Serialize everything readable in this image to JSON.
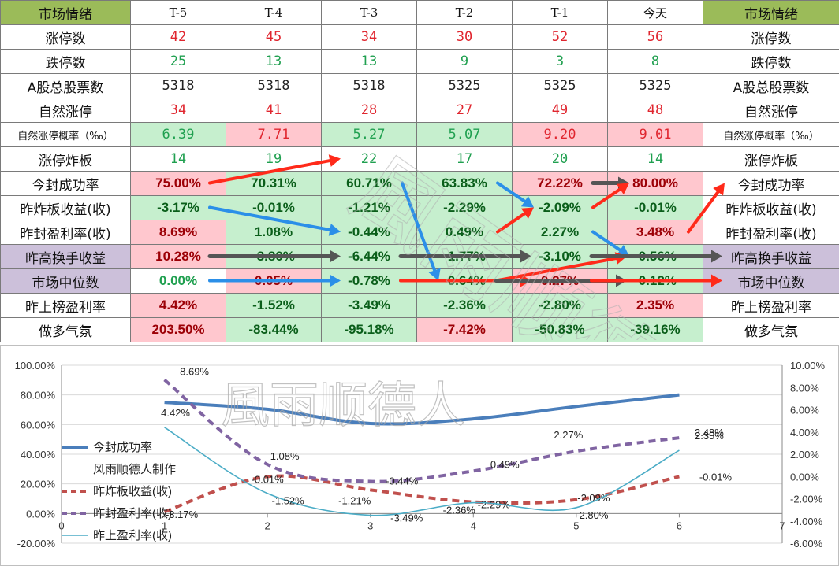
{
  "header": {
    "left_title": "市场情绪",
    "right_title": "市场情绪",
    "cols": [
      "T-5",
      "T-4",
      "T-3",
      "T-2",
      "T-1",
      "今天"
    ]
  },
  "rows": [
    {
      "label": "涨停数",
      "kind": "val",
      "cells": [
        {
          "v": "42",
          "c": "red"
        },
        {
          "v": "45",
          "c": "red"
        },
        {
          "v": "34",
          "c": "red"
        },
        {
          "v": "30",
          "c": "red"
        },
        {
          "v": "52",
          "c": "red"
        },
        {
          "v": "56",
          "c": "red"
        }
      ]
    },
    {
      "label": "跌停数",
      "kind": "val",
      "cells": [
        {
          "v": "25",
          "c": "green"
        },
        {
          "v": "13",
          "c": "green"
        },
        {
          "v": "13",
          "c": "green"
        },
        {
          "v": "9",
          "c": "green"
        },
        {
          "v": "3",
          "c": "green"
        },
        {
          "v": "8",
          "c": "green"
        }
      ]
    },
    {
      "label": "A股总股票数",
      "kind": "val",
      "cells": [
        {
          "v": "5318",
          "c": "black"
        },
        {
          "v": "5318",
          "c": "black"
        },
        {
          "v": "5318",
          "c": "black"
        },
        {
          "v": "5325",
          "c": "black"
        },
        {
          "v": "5325",
          "c": "black"
        },
        {
          "v": "5325",
          "c": "black"
        }
      ]
    },
    {
      "label": "自然涨停",
      "kind": "val",
      "cells": [
        {
          "v": "34",
          "c": "red"
        },
        {
          "v": "41",
          "c": "red"
        },
        {
          "v": "28",
          "c": "red"
        },
        {
          "v": "27",
          "c": "red"
        },
        {
          "v": "49",
          "c": "red"
        },
        {
          "v": "48",
          "c": "red"
        }
      ]
    },
    {
      "label": "自然涨停概率（‰）",
      "kind": "val",
      "small": true,
      "cells": [
        {
          "v": "6.39",
          "c": "green",
          "bg": "green"
        },
        {
          "v": "7.71",
          "c": "red",
          "bg": "pink"
        },
        {
          "v": "5.27",
          "c": "green",
          "bg": "green"
        },
        {
          "v": "5.07",
          "c": "green",
          "bg": "green"
        },
        {
          "v": "9.20",
          "c": "red",
          "bg": "pink"
        },
        {
          "v": "9.01",
          "c": "red",
          "bg": "pink"
        }
      ]
    },
    {
      "label": "涨停炸板",
      "kind": "val",
      "cells": [
        {
          "v": "14",
          "c": "green"
        },
        {
          "v": "19",
          "c": "green"
        },
        {
          "v": "22",
          "c": "green"
        },
        {
          "v": "17",
          "c": "green"
        },
        {
          "v": "20",
          "c": "green"
        },
        {
          "v": "14",
          "c": "green"
        }
      ]
    },
    {
      "label": "今封成功率",
      "kind": "pct",
      "cells": [
        {
          "v": "75.00%",
          "c": "dred",
          "bg": "pink"
        },
        {
          "v": "70.31%",
          "c": "dgreen",
          "bg": "green"
        },
        {
          "v": "60.71%",
          "c": "dgreen",
          "bg": "green"
        },
        {
          "v": "63.83%",
          "c": "dgreen",
          "bg": "green"
        },
        {
          "v": "72.22%",
          "c": "dred",
          "bg": "pink"
        },
        {
          "v": "80.00%",
          "c": "dred",
          "bg": "pink"
        }
      ]
    },
    {
      "label": "昨炸板收益(收)",
      "kind": "pct",
      "cells": [
        {
          "v": "-3.17%",
          "c": "dgreen",
          "bg": "green"
        },
        {
          "v": "-0.01%",
          "c": "dgreen",
          "bg": "green"
        },
        {
          "v": "-1.21%",
          "c": "dgreen",
          "bg": "green"
        },
        {
          "v": "-2.29%",
          "c": "dgreen",
          "bg": "green"
        },
        {
          "v": "-2.09%",
          "c": "dgreen",
          "bg": "green"
        },
        {
          "v": "-0.01%",
          "c": "dgreen",
          "bg": "green"
        }
      ]
    },
    {
      "label": "昨封盈利率(收)",
      "kind": "pct",
      "cells": [
        {
          "v": "8.69%",
          "c": "dred",
          "bg": "pink"
        },
        {
          "v": "1.08%",
          "c": "dgreen",
          "bg": "green"
        },
        {
          "v": "-0.44%",
          "c": "dgreen",
          "bg": "green"
        },
        {
          "v": "0.49%",
          "c": "dgreen",
          "bg": "green"
        },
        {
          "v": "2.27%",
          "c": "dgreen",
          "bg": "green"
        },
        {
          "v": "3.48%",
          "c": "dred",
          "bg": "pink"
        }
      ]
    },
    {
      "label": "昨高换手收益",
      "kind": "pct",
      "label_bg": "purple",
      "cells": [
        {
          "v": "10.28%",
          "c": "dred",
          "bg": "pink"
        },
        {
          "v": "-3.80%",
          "c": "dgreen",
          "bg": "green"
        },
        {
          "v": "-6.44%",
          "c": "dgreen",
          "bg": "green"
        },
        {
          "v": "-1.77%",
          "c": "dgreen",
          "bg": "green"
        },
        {
          "v": "-3.10%",
          "c": "dgreen",
          "bg": "green"
        },
        {
          "v": "-0.56%",
          "c": "dgreen",
          "bg": "green"
        }
      ]
    },
    {
      "label": "市场中位数",
      "kind": "pct",
      "label_bg": "purple",
      "cells": [
        {
          "v": "0.00%",
          "c": "green",
          "bg": "white"
        },
        {
          "v": "0.05%",
          "c": "dred",
          "bg": "pink"
        },
        {
          "v": "-0.78%",
          "c": "dgreen",
          "bg": "green"
        },
        {
          "v": "-0.64%",
          "c": "dgreen",
          "bg": "green"
        },
        {
          "v": "0.27%",
          "c": "dred",
          "bg": "pink"
        },
        {
          "v": "-0.12%",
          "c": "dgreen",
          "bg": "green"
        }
      ]
    },
    {
      "label": "昨上榜盈利率",
      "kind": "pct",
      "cells": [
        {
          "v": "4.42%",
          "c": "dred",
          "bg": "pink"
        },
        {
          "v": "-1.52%",
          "c": "dgreen",
          "bg": "green"
        },
        {
          "v": "-3.49%",
          "c": "dgreen",
          "bg": "green"
        },
        {
          "v": "-2.36%",
          "c": "dgreen",
          "bg": "green"
        },
        {
          "v": "-2.80%",
          "c": "dgreen",
          "bg": "green"
        },
        {
          "v": "2.35%",
          "c": "dred",
          "bg": "pink"
        }
      ]
    },
    {
      "label": "做多气氛",
      "kind": "pct",
      "cells": [
        {
          "v": "203.50%",
          "c": "dred",
          "bg": "pink"
        },
        {
          "v": "-83.44%",
          "c": "dgreen",
          "bg": "green"
        },
        {
          "v": "-95.18%",
          "c": "dgreen",
          "bg": "green"
        },
        {
          "v": "-7.42%",
          "c": "dred",
          "bg": "pink"
        },
        {
          "v": "-50.83%",
          "c": "dgreen",
          "bg": "green"
        },
        {
          "v": "-39.16%",
          "c": "dgreen",
          "bg": "green"
        }
      ]
    }
  ],
  "arrows": [
    {
      "kind": "red",
      "from": [
        7,
        1
      ],
      "to": [
        6,
        2
      ]
    },
    {
      "kind": "blue",
      "from": [
        8,
        1
      ],
      "to": [
        9,
        2
      ]
    },
    {
      "kind": "blue",
      "from": [
        7,
        3
      ],
      "to": [
        11,
        3
      ]
    },
    {
      "kind": "blue",
      "from": [
        7,
        4
      ],
      "to": [
        8,
        4
      ]
    },
    {
      "kind": "red",
      "from": [
        9,
        4
      ],
      "to": [
        8,
        4
      ]
    },
    {
      "kind": "gray",
      "from": [
        7,
        5
      ],
      "to": [
        7,
        5
      ]
    },
    {
      "kind": "red",
      "from": [
        8,
        5
      ],
      "to": [
        7,
        5
      ]
    },
    {
      "kind": "blue",
      "from": [
        9,
        5
      ],
      "to": [
        10,
        5
      ]
    },
    {
      "kind": "red",
      "from": [
        9,
        6
      ],
      "to": [
        7,
        6
      ]
    },
    {
      "kind": "gray",
      "from": [
        10,
        1
      ],
      "to": [
        10,
        2
      ]
    },
    {
      "kind": "gray",
      "from": [
        10,
        3
      ],
      "to": [
        10,
        4
      ]
    },
    {
      "kind": "red",
      "from": [
        11,
        4
      ],
      "to": [
        10,
        5
      ]
    },
    {
      "kind": "gray",
      "from": [
        10,
        5
      ],
      "to": [
        10,
        6
      ]
    },
    {
      "kind": "blue",
      "from": [
        11,
        1
      ],
      "to": [
        11,
        2
      ]
    },
    {
      "kind": "red",
      "from": [
        11,
        3
      ],
      "to": [
        11,
        4
      ]
    },
    {
      "kind": "gray",
      "from": [
        11,
        4
      ],
      "to": [
        11,
        5
      ]
    },
    {
      "kind": "red",
      "from": [
        11,
        5
      ],
      "to": [
        11,
        6
      ]
    }
  ],
  "watermark": "風雨顺德人",
  "chart_data": {
    "type": "line",
    "x": [
      1,
      2,
      3,
      4,
      5,
      6
    ],
    "xlim": [
      0,
      7
    ],
    "xticks": [
      "0",
      "1",
      "2",
      "3",
      "4",
      "5",
      "6",
      "7"
    ],
    "left_axis": {
      "ylim": [
        -20,
        100
      ],
      "ticks": [
        "-20.00%",
        "0.00%",
        "20.00%",
        "40.00%",
        "60.00%",
        "80.00%",
        "100.00%"
      ]
    },
    "right_axis": {
      "ylim": [
        -6,
        10
      ],
      "ticks": [
        "-6.00%",
        "-4.00%",
        "-2.00%",
        "0.00%",
        "2.00%",
        "4.00%",
        "6.00%",
        "8.00%",
        "10.00%"
      ]
    },
    "grid": "horizontal",
    "legend_position": "left",
    "legend_extra": "风雨顺德人制作",
    "series": [
      {
        "name": "今封成功率",
        "axis": "left",
        "style": "solid-thick",
        "color": "#4a7ebb",
        "values": [
          75.0,
          70.31,
          60.71,
          63.83,
          72.22,
          80.0
        ],
        "labels": []
      },
      {
        "name": "昨炸板收益(收)",
        "axis": "right",
        "style": "dashed",
        "color": "#c0504d",
        "values": [
          -3.17,
          -0.01,
          -1.21,
          -2.29,
          -2.09,
          -0.01
        ],
        "labels": [
          "-3.17%",
          "-0.01%",
          "-1.21%",
          "-2.29%",
          "-2.09%",
          "-0.01%"
        ]
      },
      {
        "name": "昨封盈利率(收)",
        "axis": "right",
        "style": "dashed",
        "color": "#8064a2",
        "values": [
          8.69,
          1.08,
          -0.44,
          0.49,
          2.27,
          3.48
        ],
        "labels": [
          "8.69%",
          "1.08%",
          "-0.44%",
          "0.49%",
          "2.27%",
          "3.48%"
        ]
      },
      {
        "name": "昨上盈利率(收)",
        "axis": "right",
        "style": "solid-thin",
        "color": "#4bacc6",
        "values": [
          4.42,
          -1.52,
          -3.49,
          -2.36,
          -2.8,
          2.35
        ],
        "labels": [
          "4.42%",
          "-1.52%",
          "-3.49%",
          "-2.36%",
          "-2.80%",
          "2.35%"
        ]
      }
    ]
  }
}
